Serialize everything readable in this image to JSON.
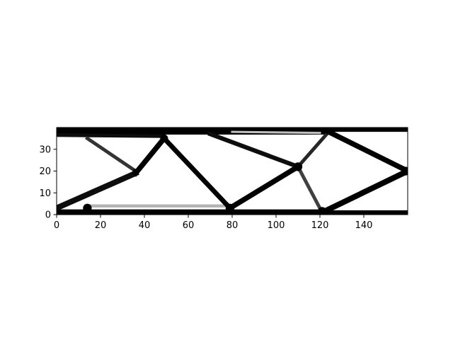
{
  "chart_data": {
    "type": "heatmap",
    "title": "",
    "xlabel": "",
    "ylabel": "",
    "xlim": [
      0,
      160
    ],
    "ylim": [
      0,
      40
    ],
    "x_ticks": [
      "0",
      "20",
      "40",
      "60",
      "80",
      "100",
      "120",
      "140"
    ],
    "y_ticks": [
      "0",
      "10",
      "20",
      "30"
    ],
    "colormap": "gray_r",
    "grid": false,
    "solid_regions": [
      {
        "name": "top-chord",
        "points": [
          [
            0,
            38
          ],
          [
            160,
            38
          ],
          [
            160,
            40
          ],
          [
            0,
            40
          ]
        ]
      },
      {
        "name": "bottom-chord",
        "points": [
          [
            0,
            0
          ],
          [
            160,
            0
          ],
          [
            160,
            2
          ],
          [
            0,
            2
          ]
        ]
      }
    ],
    "members": [
      {
        "from": [
          0,
          38.5
        ],
        "to": [
          122,
          38.5
        ],
        "width": 3.5,
        "density": 1.0
      },
      {
        "from": [
          0,
          36.5
        ],
        "to": [
          48,
          36
        ],
        "width": 1.6,
        "density": 0.95
      },
      {
        "from": [
          0,
          1
        ],
        "to": [
          122,
          1
        ],
        "width": 2.8,
        "density": 1.0
      },
      {
        "from": [
          14,
          4
        ],
        "to": [
          80,
          4
        ],
        "width": 1.4,
        "density": 0.3
      },
      {
        "from": [
          0,
          3
        ],
        "to": [
          36,
          19
        ],
        "width": 2.6,
        "density": 0.95
      },
      {
        "from": [
          14,
          35
        ],
        "to": [
          36,
          20
        ],
        "width": 1.6,
        "density": 0.8
      },
      {
        "from": [
          36,
          19
        ],
        "to": [
          49,
          35
        ],
        "width": 2.4,
        "density": 1.0
      },
      {
        "from": [
          49,
          35
        ],
        "to": [
          79,
          3
        ],
        "width": 2.2,
        "density": 1.0
      },
      {
        "from": [
          79,
          3
        ],
        "to": [
          110,
          22
        ],
        "width": 2.4,
        "density": 1.0
      },
      {
        "from": [
          70,
          37
        ],
        "to": [
          110,
          22
        ],
        "width": 2.0,
        "density": 0.95
      },
      {
        "from": [
          110,
          22
        ],
        "to": [
          124,
          38
        ],
        "width": 1.6,
        "density": 0.85
      },
      {
        "from": [
          110,
          22
        ],
        "to": [
          121,
          1
        ],
        "width": 1.6,
        "density": 0.75
      },
      {
        "from": [
          122,
          39
        ],
        "to": [
          160,
          20
        ],
        "width": 2.4,
        "density": 1.0
      },
      {
        "from": [
          121,
          1
        ],
        "to": [
          160,
          20
        ],
        "width": 2.6,
        "density": 1.0
      },
      {
        "from": [
          80,
          38
        ],
        "to": [
          120,
          37.5
        ],
        "width": 1.0,
        "density": 0.25
      }
    ],
    "nodes": [
      {
        "at": [
          36,
          19.5
        ],
        "r": 1.5
      },
      {
        "at": [
          49,
          35
        ],
        "r": 1.8
      },
      {
        "at": [
          79,
          3
        ],
        "r": 2.0
      },
      {
        "at": [
          110,
          22
        ],
        "r": 2.0
      },
      {
        "at": [
          121,
          1.5
        ],
        "r": 2.0
      },
      {
        "at": [
          159,
          20
        ],
        "r": 2.0
      },
      {
        "at": [
          14,
          3
        ],
        "r": 2.0
      }
    ]
  }
}
